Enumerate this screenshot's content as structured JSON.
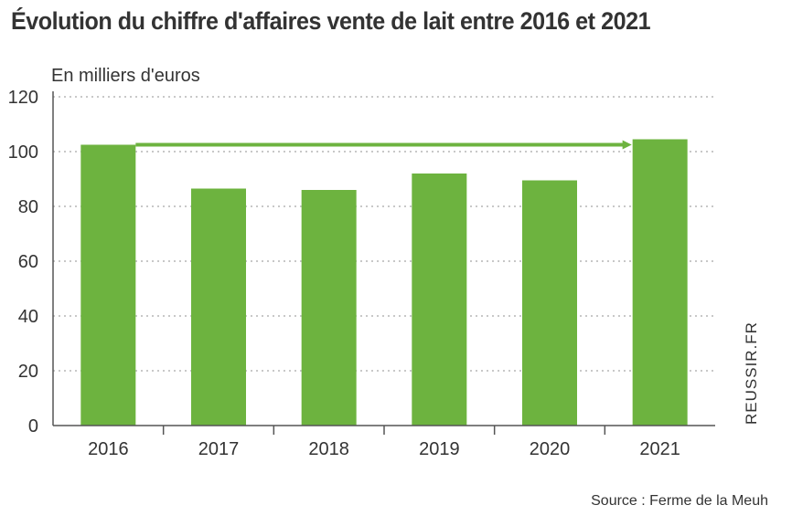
{
  "title": "Évolution du chiffre d'affaires vente de lait entre 2016 et 2021",
  "ylabel": "En milliers d'euros",
  "credit": "REUSSIR.FR",
  "source": "Source : Ferme de la Meuh",
  "colors": {
    "bar": "#6db33f",
    "arrow": "#6db33f",
    "grid": "#b5b5b5",
    "axis": "#555555",
    "text": "#333333"
  },
  "chart_data": {
    "type": "bar",
    "categories": [
      "2016",
      "2017",
      "2018",
      "2019",
      "2020",
      "2021"
    ],
    "values": [
      102.5,
      86.5,
      86,
      92,
      89.5,
      104.5
    ],
    "ylim": [
      0,
      120
    ],
    "yticks": [
      0,
      20,
      40,
      60,
      80,
      100,
      120
    ],
    "grid": true,
    "arrow": {
      "from": "2016",
      "to": "2021"
    }
  }
}
